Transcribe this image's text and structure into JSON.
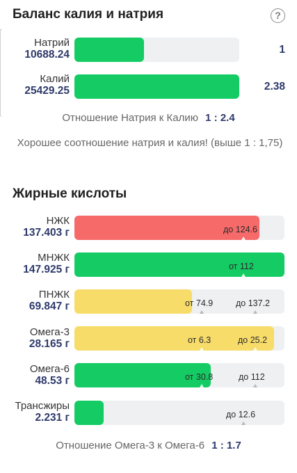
{
  "balance": {
    "title": "Баланс калия и натрия",
    "rows": [
      {
        "name": "Натрий",
        "value": "10688.24",
        "ratio": "1",
        "fill_fraction": 0.42
      },
      {
        "name": "Калий",
        "value": "25429.25",
        "ratio": "2.38",
        "fill_fraction": 1.0
      }
    ],
    "ratio_text": "Отношение Натрия к Калию",
    "ratio_value": "1 : 2.4",
    "note": "Хорошее соотношение натрия и калия! (выше 1 : 1,75)"
  },
  "fats": {
    "title": "Жирные кислоты",
    "rows": [
      {
        "name": "НЖК",
        "value": "137.403 г",
        "low": "",
        "high": "до 124.6",
        "fill_fraction": 0.88,
        "color": "#f66a6a"
      },
      {
        "name": "МНЖК",
        "value": "147.925 г",
        "low": "от 112",
        "high": "",
        "fill_fraction": 1.0,
        "color": "#14cc63"
      },
      {
        "name": "ПНЖК",
        "value": "69.847 г",
        "low": "от 74.9",
        "high": "до 137.2",
        "fill_fraction": 0.56,
        "color": "#f8dc6a"
      },
      {
        "name": "Омега-3",
        "value": "28.165 г",
        "low": "от 6.3",
        "high": "до 25.2",
        "fill_fraction": 0.95,
        "color": "#f8dc6a"
      },
      {
        "name": "Омега-6",
        "value": "48.53 г",
        "low": "от 30.8",
        "high": "до 112",
        "fill_fraction": 0.65,
        "color": "#14cc63"
      },
      {
        "name": "Трансжиры",
        "value": "2.231 г",
        "low": "",
        "high": "до 12.6",
        "fill_fraction": 0.14,
        "color": "#14cc63"
      }
    ],
    "ratio_text": "Отношение Омега-3 к Омега-6",
    "ratio_value": "1 : 1.7"
  }
}
